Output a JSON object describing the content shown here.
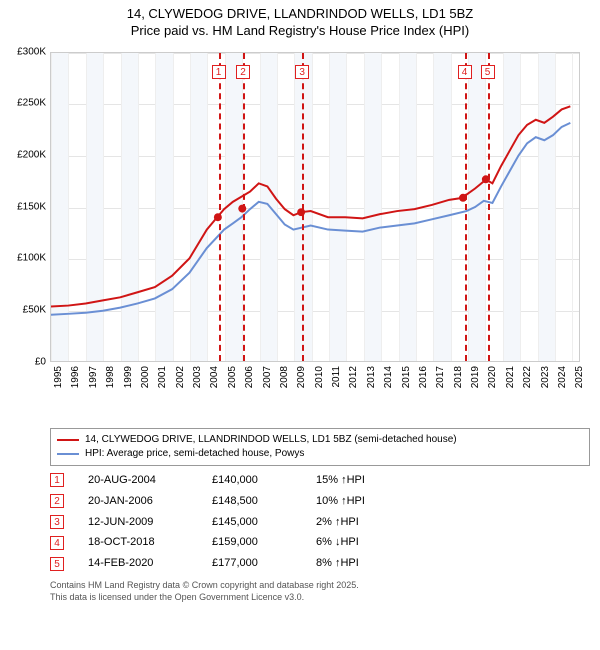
{
  "title": {
    "line1": "14, CLYWEDOG DRIVE, LLANDRINDOD WELLS, LD1 5BZ",
    "line2": "Price paid vs. HM Land Registry's House Price Index (HPI)",
    "fontsize": 13
  },
  "chart": {
    "type": "line",
    "background_color": "#ffffff",
    "grid_color": "#e5e5e5",
    "plot_border_color": "#cccccc",
    "x": {
      "min": 1995,
      "max": 2025.5,
      "ticks": [
        1995,
        1996,
        1997,
        1998,
        1999,
        2000,
        2001,
        2002,
        2003,
        2004,
        2005,
        2006,
        2007,
        2008,
        2009,
        2010,
        2011,
        2012,
        2013,
        2014,
        2015,
        2016,
        2017,
        2018,
        2019,
        2020,
        2021,
        2022,
        2023,
        2024,
        2025
      ],
      "label_fontsize": 10
    },
    "y": {
      "min": 0,
      "max": 300000,
      "tick_step": 50000,
      "label_prefix": "£",
      "label_suffix_k": "K",
      "label_fontsize": 10
    },
    "series": [
      {
        "id": "property",
        "label": "14, CLYWEDOG DRIVE, LLANDRINDOD WELLS, LD1 5BZ (semi-detached house)",
        "color": "#d01515",
        "width": 2,
        "data": [
          [
            1995,
            53000
          ],
          [
            1996,
            54000
          ],
          [
            1997,
            56000
          ],
          [
            1998,
            59000
          ],
          [
            1999,
            62000
          ],
          [
            2000,
            67000
          ],
          [
            2001,
            72000
          ],
          [
            2002,
            83000
          ],
          [
            2003,
            100000
          ],
          [
            2004,
            128000
          ],
          [
            2004.6,
            140000
          ],
          [
            2005,
            148000
          ],
          [
            2005.5,
            155000
          ],
          [
            2006,
            160000
          ],
          [
            2006.5,
            165000
          ],
          [
            2007,
            173000
          ],
          [
            2007.5,
            170000
          ],
          [
            2008,
            158000
          ],
          [
            2008.5,
            148000
          ],
          [
            2009,
            142000
          ],
          [
            2009.45,
            145000
          ],
          [
            2010,
            146000
          ],
          [
            2011,
            140000
          ],
          [
            2012,
            140000
          ],
          [
            2013,
            139000
          ],
          [
            2014,
            143000
          ],
          [
            2015,
            146000
          ],
          [
            2016,
            148000
          ],
          [
            2017,
            152000
          ],
          [
            2018,
            157000
          ],
          [
            2018.8,
            159000
          ],
          [
            2019,
            162000
          ],
          [
            2019.5,
            168000
          ],
          [
            2020,
            175000
          ],
          [
            2020.1,
            177000
          ],
          [
            2020.5,
            173000
          ],
          [
            2021,
            190000
          ],
          [
            2021.5,
            205000
          ],
          [
            2022,
            220000
          ],
          [
            2022.5,
            230000
          ],
          [
            2023,
            235000
          ],
          [
            2023.5,
            232000
          ],
          [
            2024,
            238000
          ],
          [
            2024.5,
            245000
          ],
          [
            2025,
            248000
          ]
        ]
      },
      {
        "id": "hpi",
        "label": "HPI: Average price, semi-detached house, Powys",
        "color": "#6a8fd4",
        "width": 2,
        "data": [
          [
            1995,
            45000
          ],
          [
            1996,
            46000
          ],
          [
            1997,
            47000
          ],
          [
            1998,
            49000
          ],
          [
            1999,
            52000
          ],
          [
            2000,
            56000
          ],
          [
            2001,
            61000
          ],
          [
            2002,
            70000
          ],
          [
            2003,
            86000
          ],
          [
            2004,
            110000
          ],
          [
            2005,
            128000
          ],
          [
            2005.5,
            134000
          ],
          [
            2006,
            140000
          ],
          [
            2006.5,
            148000
          ],
          [
            2007,
            155000
          ],
          [
            2007.5,
            153000
          ],
          [
            2008,
            143000
          ],
          [
            2008.5,
            133000
          ],
          [
            2009,
            128000
          ],
          [
            2010,
            132000
          ],
          [
            2011,
            128000
          ],
          [
            2012,
            127000
          ],
          [
            2013,
            126000
          ],
          [
            2014,
            130000
          ],
          [
            2015,
            132000
          ],
          [
            2016,
            134000
          ],
          [
            2017,
            138000
          ],
          [
            2018,
            142000
          ],
          [
            2019,
            146000
          ],
          [
            2019.5,
            150000
          ],
          [
            2020,
            156000
          ],
          [
            2020.5,
            154000
          ],
          [
            2021,
            170000
          ],
          [
            2021.5,
            185000
          ],
          [
            2022,
            200000
          ],
          [
            2022.5,
            212000
          ],
          [
            2023,
            218000
          ],
          [
            2023.5,
            215000
          ],
          [
            2024,
            220000
          ],
          [
            2024.5,
            228000
          ],
          [
            2025,
            232000
          ]
        ]
      }
    ],
    "sale_markers": {
      "color": "#d01515",
      "radius": 4,
      "points": [
        {
          "x": 2004.64,
          "y": 140000
        },
        {
          "x": 2006.05,
          "y": 148500
        },
        {
          "x": 2009.45,
          "y": 145000
        },
        {
          "x": 2018.8,
          "y": 159000
        },
        {
          "x": 2020.12,
          "y": 177000
        }
      ]
    },
    "event_lines": {
      "color": "#d01515",
      "dash": "4,3",
      "events": [
        {
          "n": "1",
          "x": 2004.64
        },
        {
          "n": "2",
          "x": 2006.05
        },
        {
          "n": "3",
          "x": 2009.45
        },
        {
          "n": "4",
          "x": 2018.8
        },
        {
          "n": "5",
          "x": 2020.12
        }
      ]
    }
  },
  "legend": {
    "border_color": "#999999",
    "fontsize": 10
  },
  "events_table": {
    "rows": [
      {
        "n": "1",
        "date": "20-AUG-2004",
        "price": "£140,000",
        "delta": "15%",
        "dir": "up"
      },
      {
        "n": "2",
        "date": "20-JAN-2006",
        "price": "£148,500",
        "delta": "10%",
        "dir": "up"
      },
      {
        "n": "3",
        "date": "12-JUN-2009",
        "price": "£145,000",
        "delta": "2%",
        "dir": "up"
      },
      {
        "n": "4",
        "date": "18-OCT-2018",
        "price": "£159,000",
        "delta": "6%",
        "dir": "down"
      },
      {
        "n": "5",
        "date": "14-FEB-2020",
        "price": "£177,000",
        "delta": "8%",
        "dir": "up"
      }
    ]
  },
  "footer": {
    "line1": "Contains HM Land Registry data © Crown copyright and database right 2025.",
    "line2": "This data is licensed under the Open Government Licence v3.0."
  }
}
